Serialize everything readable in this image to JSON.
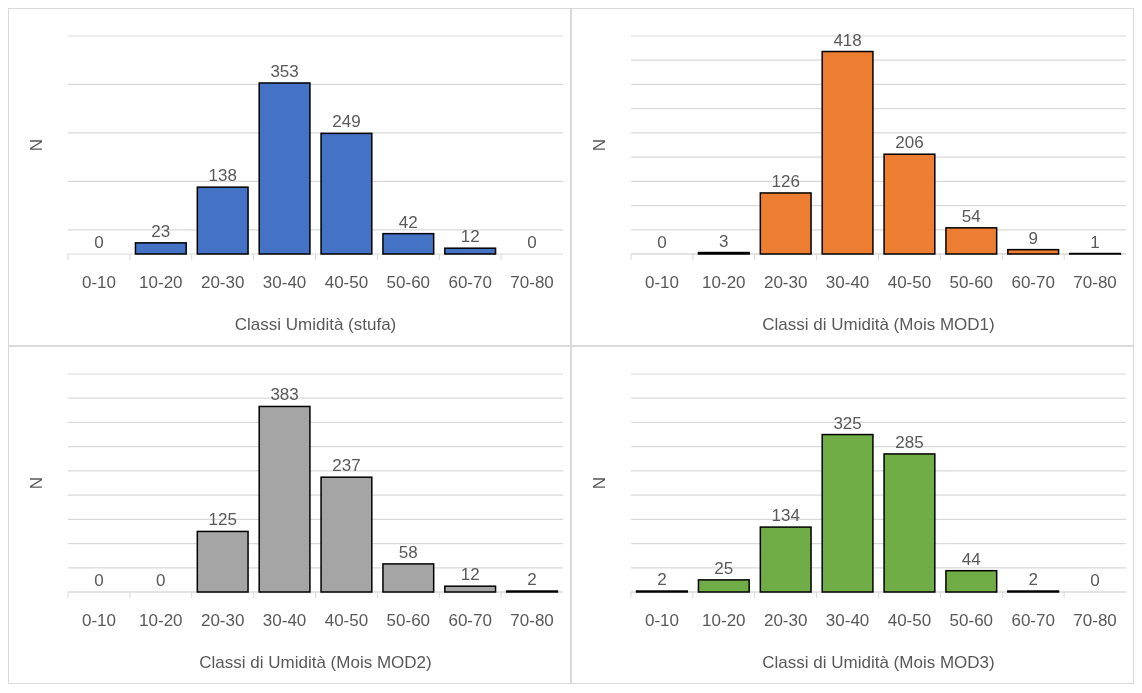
{
  "chart_data": [
    {
      "type": "bar",
      "xlabel": "Classi Umidità (stufa)",
      "ylabel": "N",
      "categories": [
        "0-10",
        "10-20",
        "20-30",
        "30-40",
        "40-50",
        "50-60",
        "60-70",
        "70-80"
      ],
      "values": [
        0,
        23,
        138,
        353,
        249,
        42,
        12,
        0
      ],
      "color": "#4472c4",
      "ylim": [
        0,
        450
      ],
      "yticks": [
        {
          "value": 50,
          "label": null
        },
        {
          "value": 150,
          "label": null
        },
        {
          "value": 250,
          "label": null
        },
        {
          "value": 350,
          "label": null
        },
        {
          "value": 450,
          "label": null
        }
      ],
      "grid": "y",
      "tick_labels": "x",
      "data_labels": true
    },
    {
      "type": "bar",
      "xlabel": "Classi di Umidità (Mois MOD1)",
      "ylabel": "N",
      "categories": [
        "0-10",
        "10-20",
        "20-30",
        "30-40",
        "40-50",
        "50-60",
        "60-70",
        "70-80"
      ],
      "values": [
        0,
        3,
        126,
        418,
        206,
        54,
        9,
        1
      ],
      "color": "#ed7d31",
      "ylim": [
        0,
        450
      ],
      "yticks": [
        {
          "value": 0,
          "label": null
        },
        {
          "value": 50,
          "label": null
        },
        {
          "value": 100,
          "label": null
        },
        {
          "value": 150,
          "label": null
        },
        {
          "value": 200,
          "label": null
        },
        {
          "value": 250,
          "label": null
        },
        {
          "value": 300,
          "label": null
        },
        {
          "value": 350,
          "label": null
        },
        {
          "value": 400,
          "label": null
        },
        {
          "value": 450,
          "label": null
        }
      ],
      "grid": "y",
      "tick_labels": "x",
      "data_labels": true
    },
    {
      "type": "bar",
      "xlabel": "Classi di Umidità (Mois MOD2)",
      "ylabel": "N",
      "categories": [
        "0-10",
        "10-20",
        "20-30",
        "30-40",
        "40-50",
        "50-60",
        "60-70",
        "70-80"
      ],
      "values": [
        0,
        0,
        125,
        383,
        237,
        58,
        12,
        2
      ],
      "color": "#a5a5a5",
      "ylim": [
        0,
        450
      ],
      "yticks": [
        {
          "value": 0,
          "label": null
        },
        {
          "value": 50,
          "label": null
        },
        {
          "value": 100,
          "label": null
        },
        {
          "value": 150,
          "label": null
        },
        {
          "value": 200,
          "label": null
        },
        {
          "value": 250,
          "label": null
        },
        {
          "value": 300,
          "label": null
        },
        {
          "value": 350,
          "label": null
        },
        {
          "value": 400,
          "label": null
        },
        {
          "value": 450,
          "label": null
        }
      ],
      "grid": "y",
      "tick_labels": "x",
      "data_labels": true
    },
    {
      "type": "bar",
      "xlabel": "Classi di Umidità (Mois MOD3)",
      "ylabel": "N",
      "categories": [
        "0-10",
        "10-20",
        "20-30",
        "30-40",
        "40-50",
        "50-60",
        "60-70",
        "70-80"
      ],
      "values": [
        2,
        25,
        134,
        325,
        285,
        44,
        2,
        0
      ],
      "color": "#70ad47",
      "ylim": [
        0,
        450
      ],
      "yticks": [
        {
          "value": 0,
          "label": null
        },
        {
          "value": 50,
          "label": null
        },
        {
          "value": 100,
          "label": null
        },
        {
          "value": 150,
          "label": null
        },
        {
          "value": 200,
          "label": null
        },
        {
          "value": 250,
          "label": null
        },
        {
          "value": 300,
          "label": null
        },
        {
          "value": 350,
          "label": null
        },
        {
          "value": 400,
          "label": null
        },
        {
          "value": 450,
          "label": null
        }
      ],
      "grid": "y",
      "tick_labels": "x",
      "data_labels": true
    }
  ]
}
